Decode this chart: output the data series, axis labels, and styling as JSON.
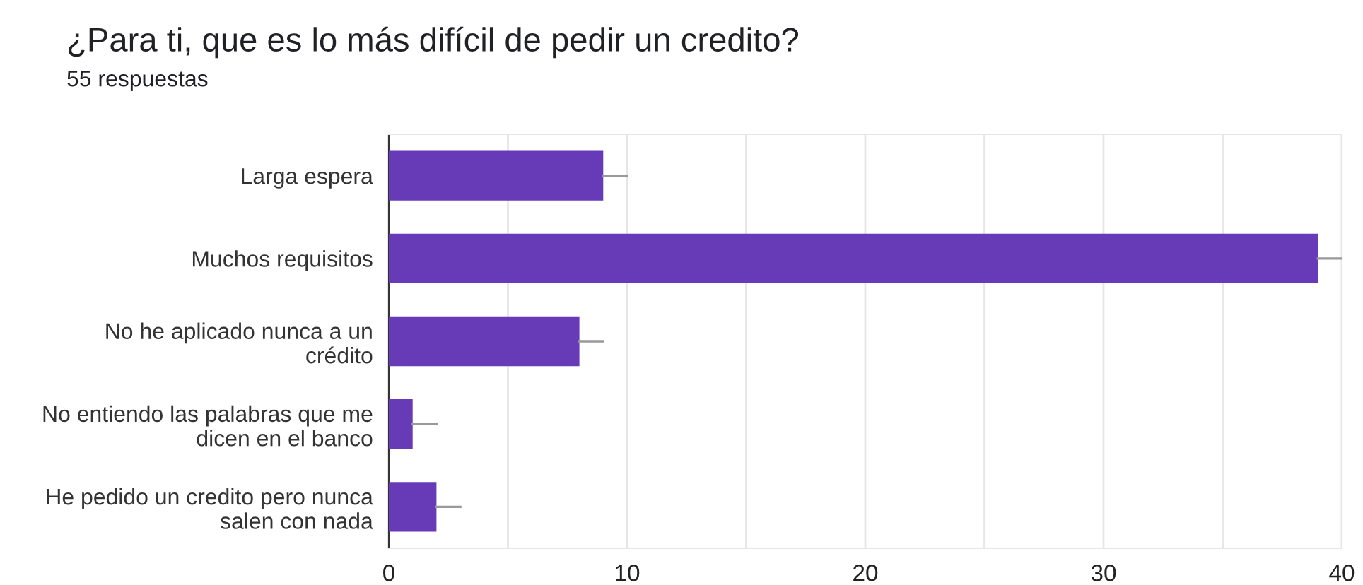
{
  "chart_data": {
    "type": "bar",
    "orientation": "horizontal",
    "title": "¿Para ti, que es lo más difícil de pedir un credito?",
    "subtitle": "55 respuestas",
    "categories": [
      "Larga espera",
      "Muchos requisitos",
      "No he aplicado nunca a un\ncrédito",
      "No entiendo las palabras que me\ndicen en el banco",
      "He pedido un credito pero nunca\nsalen con nada"
    ],
    "values": [
      9,
      39,
      8,
      1,
      2
    ],
    "errors": [
      [
        9,
        10
      ],
      [
        39,
        40
      ],
      [
        8,
        9
      ],
      [
        1,
        2
      ],
      [
        2,
        3
      ]
    ],
    "color": "#673ab7",
    "xlim": [
      0,
      40
    ],
    "xticks": [
      0,
      {
        "value": 5,
        "label": null
      },
      10,
      {
        "value": 15,
        "label": null
      },
      20,
      {
        "value": 25,
        "label": null
      },
      30,
      {
        "value": 35,
        "label": null
      },
      40
    ],
    "grid": "x",
    "legend": false
  }
}
